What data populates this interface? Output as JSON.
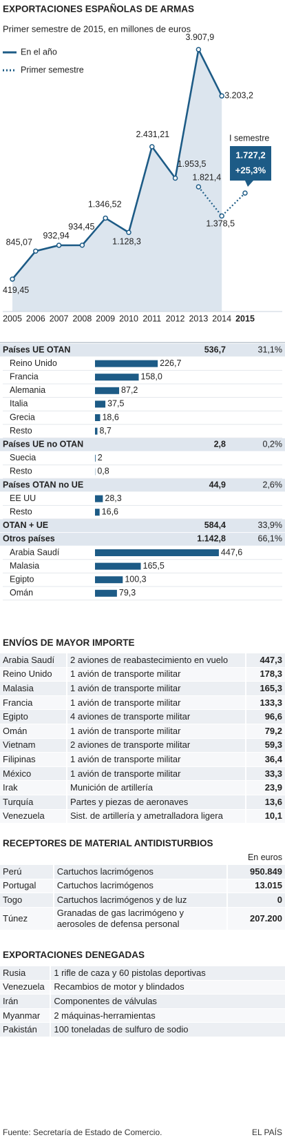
{
  "chart_data": {
    "type": "line",
    "title": "EXPORTACIONES ESPAÑOLAS DE ARMAS",
    "subtitle": "Primer semestre de 2015, en millones de euros",
    "categories": [
      "2005",
      "2006",
      "2007",
      "2008",
      "2009",
      "2010",
      "2011",
      "2012",
      "2013",
      "2014",
      "2015"
    ],
    "ylim": [
      0,
      4200
    ],
    "series": [
      {
        "name": "En el año",
        "color": "#1d5b86",
        "style": "solid",
        "values": [
          419.45,
          845.07,
          932.94,
          934.45,
          1346.52,
          1128.3,
          2431.21,
          1953.5,
          3907.9,
          3203.2,
          null
        ],
        "value_labels": [
          "419,45",
          "845,07",
          "932,94",
          "934,45",
          "1.346,52",
          "1.128,3",
          "2.431,21",
          "1.953,5",
          "3.907,9",
          "3.203,2",
          null
        ]
      },
      {
        "name": "Primer semestre",
        "color": "#1d5b86",
        "style": "dotted",
        "values": [
          null,
          null,
          null,
          null,
          null,
          null,
          null,
          null,
          1821.4,
          1378.5,
          1727.2
        ],
        "value_labels": [
          null,
          null,
          null,
          null,
          null,
          null,
          null,
          null,
          "1.821,4",
          "1.378,5",
          "1.727,2"
        ]
      }
    ],
    "annotations": [
      "I semestre",
      "+25,3%"
    ]
  },
  "breakdown": {
    "xlim": [
      0,
      500
    ],
    "color": "#1d5b86",
    "groups": [
      {
        "name": "Países UE OTAN",
        "total": "536,7",
        "share": "31,1%",
        "items": [
          {
            "name": "Reino Unido",
            "value": 226.7,
            "value_label": "226,7"
          },
          {
            "name": "Francia",
            "value": 158.0,
            "value_label": "158,0"
          },
          {
            "name": "Alemania",
            "value": 87.2,
            "value_label": "87,2"
          },
          {
            "name": "Italia",
            "value": 37.5,
            "value_label": "37,5"
          },
          {
            "name": "Grecia",
            "value": 18.6,
            "value_label": "18,6"
          },
          {
            "name": "Resto",
            "value": 8.7,
            "value_label": "8,7"
          }
        ]
      },
      {
        "name": "Países UE no OTAN",
        "total": "2,8",
        "share": "0,2%",
        "items": [
          {
            "name": "Suecia",
            "value": 2
          },
          {
            "name": "Resto",
            "value": 0.8,
            "value_label": "0,8"
          }
        ]
      },
      {
        "name": "Países OTAN no UE",
        "total": "44,9",
        "share": "2,6%",
        "items": [
          {
            "name": "EE UU",
            "value": 28.3,
            "value_label": "28,3"
          },
          {
            "name": "Resto",
            "value": 16.6,
            "value_label": "16,6"
          }
        ]
      },
      {
        "name": "OTAN + UE",
        "total": "584,4",
        "share": "33,9%",
        "items": []
      },
      {
        "name": "Otros países",
        "total": "1.142,8",
        "share": "66,1%",
        "items": [
          {
            "name": "Arabia Saudí",
            "value": 447.6,
            "value_label": "447,6"
          },
          {
            "name": "Malasia",
            "value": 165.5,
            "value_label": "165,5"
          },
          {
            "name": "Egipto",
            "value": 100.3,
            "value_label": "100,3"
          },
          {
            "name": "Omán",
            "value": 79.3,
            "value_label": "79,3"
          }
        ]
      }
    ]
  },
  "shipments": {
    "title": "ENVÍOS DE MAYOR IMPORTE",
    "rows": [
      [
        "Arabia Saudí",
        "2 aviones de reabastecimiento en vuelo",
        "447,3"
      ],
      [
        "Reino Unido",
        "1 avión de transporte militar",
        "178,3"
      ],
      [
        "Malasia",
        "1 avión de transporte militar",
        "165,3"
      ],
      [
        "Francia",
        "1 avión de transporte militar",
        "133,3"
      ],
      [
        "Egipto",
        "4 aviones de transporte militar",
        "96,6"
      ],
      [
        "Omán",
        "1 avión de transporte militar",
        "79,2"
      ],
      [
        "Vietnam",
        "2 aviones de transporte militar",
        "59,3"
      ],
      [
        "Filipinas",
        "1 avión de transporte militar",
        "36,4"
      ],
      [
        "México",
        "1 avión de transporte militar",
        "33,3"
      ],
      [
        "Irak",
        "Munición de artillería",
        "23,9"
      ],
      [
        "Turquía",
        "Partes y piezas de aeronaves",
        "13,6"
      ],
      [
        "Venezuela",
        "Sist. de artillería y ametralladora ligera",
        "10,1"
      ]
    ]
  },
  "riot_gear": {
    "title": "RECEPTORES DE MATERIAL ANTIDISTURBIOS",
    "unit": "En euros",
    "rows": [
      [
        "Perú",
        "Cartuchos lacrimógenos",
        "950.849"
      ],
      [
        "Portugal",
        "Cartuchos lacrimógenos",
        "13.015"
      ],
      [
        "Togo",
        "Cartuchos lacrimógenos y de luz",
        "0"
      ],
      [
        "Túnez",
        "Granadas de gas lacrimógeno y aerosoles de defensa personal",
        "207.200"
      ]
    ]
  },
  "denied": {
    "title": "EXPORTACIONES DENEGADAS",
    "rows": [
      [
        "Rusia",
        "1 rifle de caza y 60 pistolas deportivas"
      ],
      [
        "Venezuela",
        "Recambios de motor y blindados"
      ],
      [
        "Irán",
        "Componentes de válvulas"
      ],
      [
        "Myanmar",
        "2 máquinas-herramientas"
      ],
      [
        "Pakistán",
        "100 toneladas de sulfuro de sodio"
      ]
    ]
  },
  "footer": {
    "source": "Fuente: Secretaría de Estado de Comercio.",
    "brand": "EL PAÍS"
  }
}
